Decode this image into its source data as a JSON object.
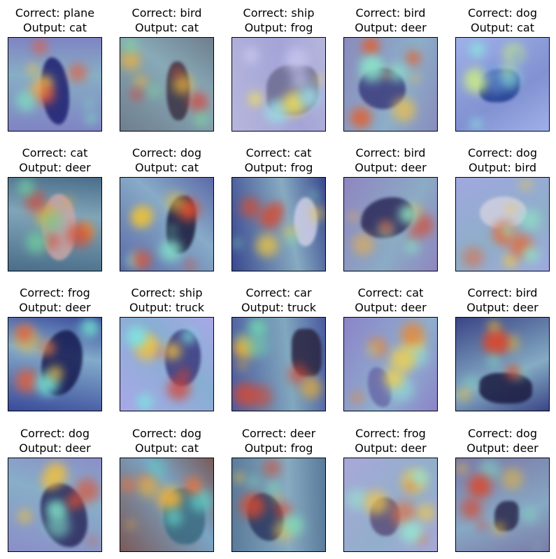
{
  "correct_prefix": "Correct: ",
  "output_prefix": "Output: ",
  "samples": [
    {
      "correct": "plane",
      "output": "cat",
      "palette": {
        "base": "#7f84c4",
        "subject": "#1e1f70",
        "hot": [
          "#f2c34a",
          "#e85a3a",
          "#7ee0c0"
        ]
      }
    },
    {
      "correct": "bird",
      "output": "cat",
      "palette": {
        "base": "#6f7e8e",
        "subject": "#3a3244",
        "hot": [
          "#f2b23a",
          "#d8433a",
          "#80d6a0"
        ]
      }
    },
    {
      "correct": "ship",
      "output": "frog",
      "palette": {
        "base": "#b6b6dc",
        "subject": "#6d6d92",
        "hot": [
          "#f0e05a",
          "#9ad8e0",
          "#c6c6ee"
        ]
      }
    },
    {
      "correct": "bird",
      "output": "deer",
      "palette": {
        "base": "#8a8cbe",
        "subject": "#3a3c7e",
        "hot": [
          "#f0c048",
          "#e26030",
          "#8ae0c8"
        ]
      }
    },
    {
      "correct": "dog",
      "output": "cat",
      "palette": {
        "base": "#9fb0e8",
        "subject": "#1f3b8e",
        "hot": [
          "#8ae0e0",
          "#c8e88a",
          "#7098e0"
        ]
      }
    },
    {
      "correct": "cat",
      "output": "deer",
      "palette": {
        "base": "#4a6e8a",
        "subject": "#c8a8a8",
        "hot": [
          "#f0a830",
          "#d84430",
          "#6ec8a0"
        ]
      }
    },
    {
      "correct": "dog",
      "output": "cat",
      "palette": {
        "base": "#5c6aa8",
        "subject": "#1a1a3a",
        "hot": [
          "#e8c040",
          "#e04e30",
          "#80d8c8"
        ]
      }
    },
    {
      "correct": "cat",
      "output": "frog",
      "palette": {
        "base": "#3a4890",
        "subject": "#cfcfe8",
        "hot": [
          "#f0c640",
          "#d84a30",
          "#7ed8b8"
        ]
      }
    },
    {
      "correct": "bird",
      "output": "deer",
      "palette": {
        "base": "#8e86c0",
        "subject": "#2c2a5a",
        "hot": [
          "#f0b040",
          "#d84a30",
          "#88d8c0"
        ]
      }
    },
    {
      "correct": "dog",
      "output": "bird",
      "palette": {
        "base": "#a0a8e0",
        "subject": "#d0d0e0",
        "hot": [
          "#f0c848",
          "#e06c40",
          "#90e0c8"
        ]
      }
    },
    {
      "correct": "frog",
      "output": "deer",
      "palette": {
        "base": "#3a4a9a",
        "subject": "#151a50",
        "hot": [
          "#e8b840",
          "#e06040",
          "#72d8d0"
        ]
      }
    },
    {
      "correct": "ship",
      "output": "truck",
      "palette": {
        "base": "#a8a8e8",
        "subject": "#3a3a7e",
        "hot": [
          "#f0c040",
          "#d84030",
          "#80e0e0"
        ]
      }
    },
    {
      "correct": "car",
      "output": "truck",
      "palette": {
        "base": "#4a5aa0",
        "subject": "#2a2440",
        "hot": [
          "#f0b030",
          "#d84830",
          "#70d0b0"
        ]
      }
    },
    {
      "correct": "cat",
      "output": "deer",
      "palette": {
        "base": "#8c84c8",
        "subject": "#6a6aa8",
        "hot": [
          "#f0d050",
          "#e08a40",
          "#90e0d8"
        ]
      }
    },
    {
      "correct": "bird",
      "output": "deer",
      "palette": {
        "base": "#3a4486",
        "subject": "#1a1a40",
        "hot": [
          "#e8b838",
          "#d84a30",
          "#78d8c0"
        ]
      }
    },
    {
      "correct": "dog",
      "output": "deer",
      "palette": {
        "base": "#8a8ec8",
        "subject": "#2a2a5c",
        "hot": [
          "#f0c040",
          "#e05030",
          "#80e0c8"
        ]
      }
    },
    {
      "correct": "dog",
      "output": "cat",
      "palette": {
        "base": "#7a5a5a",
        "subject": "#3a6a80",
        "hot": [
          "#f07038",
          "#e8b040",
          "#60c8c0"
        ]
      }
    },
    {
      "correct": "deer",
      "output": "frog",
      "palette": {
        "base": "#5a7a9a",
        "subject": "#2a3660",
        "hot": [
          "#f0c048",
          "#d84a30",
          "#80d8b8"
        ]
      }
    },
    {
      "correct": "frog",
      "output": "deer",
      "palette": {
        "base": "#a8a8d8",
        "subject": "#5a4e7a",
        "hot": [
          "#f0c848",
          "#e07040",
          "#98e0d0"
        ]
      }
    },
    {
      "correct": "dog",
      "output": "deer",
      "palette": {
        "base": "#7a7aa8",
        "subject": "#2a2a4e",
        "hot": [
          "#e8b840",
          "#d84a30",
          "#80d0c0"
        ]
      }
    }
  ]
}
